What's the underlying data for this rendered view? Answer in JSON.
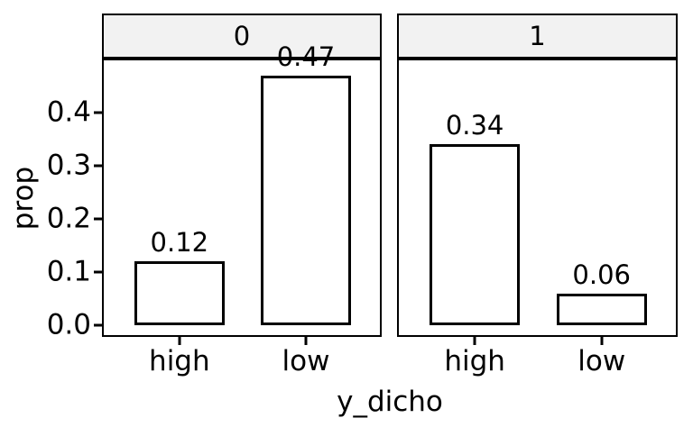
{
  "chart_data": {
    "type": "bar",
    "title": "",
    "xlabel": "y_dicho",
    "ylabel": "prop",
    "categories": [
      "high",
      "low"
    ],
    "facets": [
      {
        "label": "0",
        "values": [
          0.12,
          0.47
        ],
        "bar_labels": [
          "0.12",
          "0.47"
        ]
      },
      {
        "label": "1",
        "values": [
          0.34,
          0.06
        ],
        "bar_labels": [
          "0.34",
          "0.06"
        ]
      }
    ],
    "yticks": [
      0.0,
      0.1,
      0.2,
      0.3,
      0.4
    ],
    "ytick_labels": [
      "0.0",
      "0.1",
      "0.2",
      "0.3",
      "0.4"
    ],
    "ylim": [
      -0.02,
      0.5
    ],
    "grid": false,
    "legend_position": "none",
    "bar_fill": "#ffffff",
    "bar_border_color": "#000000",
    "strip_fill": "#f2f2f2",
    "panel_border_color": "#000000",
    "text_color": "#000000",
    "note": "value label 0.47 is clipped by the top edge of the left panel"
  }
}
